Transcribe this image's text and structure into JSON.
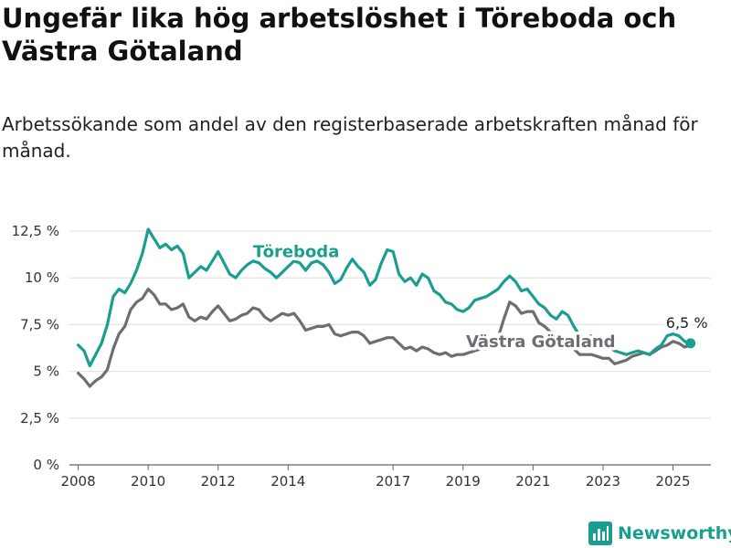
{
  "header": {
    "title": "Ungefär lika hög arbetslöshet i Töreboda och Västra Götaland",
    "subtitle": "Arbetssökande som andel av den registerbaserade arbetskraften månad för månad."
  },
  "brand": {
    "name": "Newsworthy",
    "icon": "bar-chart-logo-icon"
  },
  "colors": {
    "toreboda": "#1a9e8f",
    "vg": "#6e6d73",
    "grid": "#dedede",
    "axis": "#666666"
  },
  "chart_data": {
    "type": "line",
    "title": "Ungefär lika hög arbetslöshet i Töreboda och Västra Götaland",
    "subtitle": "Arbetssökande som andel av den registerbaserade arbetskraften månad för månad.",
    "xlabel": "",
    "ylabel": "",
    "xlim": [
      "2007-10",
      "2026-02"
    ],
    "ylim": [
      0,
      12.5
    ],
    "y_ticks": [
      {
        "value": 0,
        "label": "0 %"
      },
      {
        "value": 2.5,
        "label": "2,5 %"
      },
      {
        "value": 5,
        "label": "5 %"
      },
      {
        "value": 7.5,
        "label": "7,5 %"
      },
      {
        "value": 10,
        "label": "10 %"
      },
      {
        "value": 12.5,
        "label": "12,5 %"
      }
    ],
    "x_ticks": [
      {
        "date": "2008-01",
        "label": "2008"
      },
      {
        "date": "2010-01",
        "label": "2010"
      },
      {
        "date": "2012-01",
        "label": "2012"
      },
      {
        "date": "2014-01",
        "label": "2014"
      },
      {
        "date": "2017-01",
        "label": "2017"
      },
      {
        "date": "2019-01",
        "label": "2019"
      },
      {
        "date": "2021-01",
        "label": "2021"
      },
      {
        "date": "2023-01",
        "label": "2023"
      },
      {
        "date": "2025-01",
        "label": "2025"
      }
    ],
    "grid": true,
    "legend": "inline labels",
    "end_label": "6,5 %",
    "series": [
      {
        "name": "Töreboda",
        "label_pos": {
          "date": "2013-01",
          "value": 11.1
        },
        "points": [
          [
            "2008-01",
            6.4
          ],
          [
            "2008-03",
            6.1
          ],
          [
            "2008-05",
            5.3
          ],
          [
            "2008-07",
            5.9
          ],
          [
            "2008-09",
            6.5
          ],
          [
            "2008-11",
            7.5
          ],
          [
            "2009-01",
            9.0
          ],
          [
            "2009-03",
            9.4
          ],
          [
            "2009-05",
            9.2
          ],
          [
            "2009-07",
            9.7
          ],
          [
            "2009-09",
            10.4
          ],
          [
            "2009-11",
            11.3
          ],
          [
            "2010-01",
            12.6
          ],
          [
            "2010-03",
            12.1
          ],
          [
            "2010-05",
            11.6
          ],
          [
            "2010-07",
            11.8
          ],
          [
            "2010-09",
            11.5
          ],
          [
            "2010-11",
            11.7
          ],
          [
            "2011-01",
            11.3
          ],
          [
            "2011-03",
            10.0
          ],
          [
            "2011-05",
            10.3
          ],
          [
            "2011-07",
            10.6
          ],
          [
            "2011-09",
            10.4
          ],
          [
            "2011-11",
            10.9
          ],
          [
            "2012-01",
            11.4
          ],
          [
            "2012-03",
            10.8
          ],
          [
            "2012-05",
            10.2
          ],
          [
            "2012-07",
            10.0
          ],
          [
            "2012-09",
            10.4
          ],
          [
            "2012-11",
            10.7
          ],
          [
            "2013-01",
            10.9
          ],
          [
            "2013-03",
            10.8
          ],
          [
            "2013-05",
            10.5
          ],
          [
            "2013-07",
            10.3
          ],
          [
            "2013-09",
            10.0
          ],
          [
            "2013-11",
            10.3
          ],
          [
            "2014-01",
            10.6
          ],
          [
            "2014-03",
            10.9
          ],
          [
            "2014-05",
            10.8
          ],
          [
            "2014-07",
            10.4
          ],
          [
            "2014-09",
            10.8
          ],
          [
            "2014-11",
            10.9
          ],
          [
            "2015-01",
            10.7
          ],
          [
            "2015-03",
            10.3
          ],
          [
            "2015-05",
            9.7
          ],
          [
            "2015-07",
            9.9
          ],
          [
            "2015-09",
            10.5
          ],
          [
            "2015-11",
            11.0
          ],
          [
            "2016-01",
            10.6
          ],
          [
            "2016-03",
            10.3
          ],
          [
            "2016-05",
            9.6
          ],
          [
            "2016-07",
            9.9
          ],
          [
            "2016-09",
            10.8
          ],
          [
            "2016-11",
            11.5
          ],
          [
            "2017-01",
            11.4
          ],
          [
            "2017-03",
            10.2
          ],
          [
            "2017-05",
            9.8
          ],
          [
            "2017-07",
            10.0
          ],
          [
            "2017-09",
            9.6
          ],
          [
            "2017-11",
            10.2
          ],
          [
            "2018-01",
            10.0
          ],
          [
            "2018-03",
            9.3
          ],
          [
            "2018-05",
            9.1
          ],
          [
            "2018-07",
            8.7
          ],
          [
            "2018-09",
            8.6
          ],
          [
            "2018-11",
            8.3
          ],
          [
            "2019-01",
            8.2
          ],
          [
            "2019-03",
            8.4
          ],
          [
            "2019-05",
            8.8
          ],
          [
            "2019-07",
            8.9
          ],
          [
            "2019-09",
            9.0
          ],
          [
            "2019-11",
            9.2
          ],
          [
            "2020-01",
            9.4
          ],
          [
            "2020-03",
            9.8
          ],
          [
            "2020-05",
            10.1
          ],
          [
            "2020-07",
            9.8
          ],
          [
            "2020-09",
            9.3
          ],
          [
            "2020-11",
            9.4
          ],
          [
            "2021-01",
            9.0
          ],
          [
            "2021-03",
            8.6
          ],
          [
            "2021-05",
            8.4
          ],
          [
            "2021-07",
            8.0
          ],
          [
            "2021-09",
            7.8
          ],
          [
            "2021-11",
            8.2
          ],
          [
            "2022-01",
            8.0
          ],
          [
            "2022-03",
            7.4
          ],
          [
            "2022-05",
            6.9
          ],
          [
            "2022-07",
            6.8
          ],
          [
            "2022-09",
            6.9
          ],
          [
            "2022-11",
            6.7
          ],
          [
            "2023-01",
            6.6
          ],
          [
            "2023-03",
            6.3
          ],
          [
            "2023-05",
            6.1
          ],
          [
            "2023-07",
            6.0
          ],
          [
            "2023-09",
            5.9
          ],
          [
            "2023-11",
            6.0
          ],
          [
            "2024-01",
            6.1
          ],
          [
            "2024-03",
            6.0
          ],
          [
            "2024-05",
            5.9
          ],
          [
            "2024-07",
            6.2
          ],
          [
            "2024-09",
            6.4
          ],
          [
            "2024-11",
            6.9
          ],
          [
            "2025-01",
            7.0
          ],
          [
            "2025-03",
            6.9
          ],
          [
            "2025-05",
            6.6
          ],
          [
            "2025-07",
            6.5
          ]
        ]
      },
      {
        "name": "Västra Götaland",
        "label_pos": {
          "date": "2019-02",
          "value": 6.3
        },
        "points": [
          [
            "2008-01",
            4.9
          ],
          [
            "2008-03",
            4.6
          ],
          [
            "2008-05",
            4.2
          ],
          [
            "2008-07",
            4.5
          ],
          [
            "2008-09",
            4.7
          ],
          [
            "2008-11",
            5.1
          ],
          [
            "2009-01",
            6.2
          ],
          [
            "2009-03",
            7.0
          ],
          [
            "2009-05",
            7.4
          ],
          [
            "2009-07",
            8.3
          ],
          [
            "2009-09",
            8.7
          ],
          [
            "2009-11",
            8.9
          ],
          [
            "2010-01",
            9.4
          ],
          [
            "2010-03",
            9.1
          ],
          [
            "2010-05",
            8.6
          ],
          [
            "2010-07",
            8.6
          ],
          [
            "2010-09",
            8.3
          ],
          [
            "2010-11",
            8.4
          ],
          [
            "2011-01",
            8.6
          ],
          [
            "2011-03",
            7.9
          ],
          [
            "2011-05",
            7.7
          ],
          [
            "2011-07",
            7.9
          ],
          [
            "2011-09",
            7.8
          ],
          [
            "2011-11",
            8.2
          ],
          [
            "2012-01",
            8.5
          ],
          [
            "2012-03",
            8.1
          ],
          [
            "2012-05",
            7.7
          ],
          [
            "2012-07",
            7.8
          ],
          [
            "2012-09",
            8.0
          ],
          [
            "2012-11",
            8.1
          ],
          [
            "2013-01",
            8.4
          ],
          [
            "2013-03",
            8.3
          ],
          [
            "2013-05",
            7.9
          ],
          [
            "2013-07",
            7.7
          ],
          [
            "2013-09",
            7.9
          ],
          [
            "2013-11",
            8.1
          ],
          [
            "2014-01",
            8.0
          ],
          [
            "2014-03",
            8.1
          ],
          [
            "2014-05",
            7.7
          ],
          [
            "2014-07",
            7.2
          ],
          [
            "2014-09",
            7.3
          ],
          [
            "2014-11",
            7.4
          ],
          [
            "2015-01",
            7.4
          ],
          [
            "2015-03",
            7.5
          ],
          [
            "2015-05",
            7.0
          ],
          [
            "2015-07",
            6.9
          ],
          [
            "2015-09",
            7.0
          ],
          [
            "2015-11",
            7.1
          ],
          [
            "2016-01",
            7.1
          ],
          [
            "2016-03",
            6.9
          ],
          [
            "2016-05",
            6.5
          ],
          [
            "2016-07",
            6.6
          ],
          [
            "2016-09",
            6.7
          ],
          [
            "2016-11",
            6.8
          ],
          [
            "2017-01",
            6.8
          ],
          [
            "2017-03",
            6.5
          ],
          [
            "2017-05",
            6.2
          ],
          [
            "2017-07",
            6.3
          ],
          [
            "2017-09",
            6.1
          ],
          [
            "2017-11",
            6.3
          ],
          [
            "2018-01",
            6.2
          ],
          [
            "2018-03",
            6.0
          ],
          [
            "2018-05",
            5.9
          ],
          [
            "2018-07",
            6.0
          ],
          [
            "2018-09",
            5.8
          ],
          [
            "2018-11",
            5.9
          ],
          [
            "2019-01",
            5.9
          ],
          [
            "2019-03",
            6.0
          ],
          [
            "2019-05",
            6.1
          ],
          [
            "2019-07",
            6.2
          ],
          [
            "2019-09",
            6.2
          ],
          [
            "2019-11",
            6.4
          ],
          [
            "2020-01",
            6.8
          ],
          [
            "2020-03",
            7.8
          ],
          [
            "2020-05",
            8.7
          ],
          [
            "2020-07",
            8.5
          ],
          [
            "2020-09",
            8.1
          ],
          [
            "2020-11",
            8.2
          ],
          [
            "2021-01",
            8.2
          ],
          [
            "2021-03",
            7.6
          ],
          [
            "2021-05",
            7.4
          ],
          [
            "2021-07",
            7.1
          ],
          [
            "2021-09",
            6.6
          ],
          [
            "2021-11",
            6.5
          ],
          [
            "2022-01",
            6.4
          ],
          [
            "2022-03",
            6.2
          ],
          [
            "2022-05",
            5.9
          ],
          [
            "2022-07",
            5.9
          ],
          [
            "2022-09",
            5.9
          ],
          [
            "2022-11",
            5.8
          ],
          [
            "2023-01",
            5.7
          ],
          [
            "2023-03",
            5.7
          ],
          [
            "2023-05",
            5.4
          ],
          [
            "2023-07",
            5.5
          ],
          [
            "2023-09",
            5.6
          ],
          [
            "2023-11",
            5.8
          ],
          [
            "2024-01",
            5.9
          ],
          [
            "2024-03",
            6.0
          ],
          [
            "2024-05",
            5.9
          ],
          [
            "2024-07",
            6.1
          ],
          [
            "2024-09",
            6.3
          ],
          [
            "2024-11",
            6.4
          ],
          [
            "2025-01",
            6.6
          ],
          [
            "2025-03",
            6.5
          ],
          [
            "2025-05",
            6.3
          ],
          [
            "2025-07",
            6.4
          ]
        ]
      }
    ]
  }
}
